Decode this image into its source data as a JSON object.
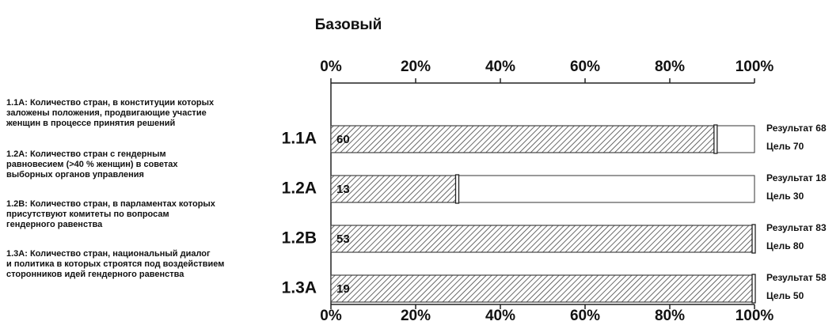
{
  "chart_data": {
    "type": "bar",
    "title": "Базовый",
    "categories": [
      "1.1A",
      "1.2A",
      "1.2B",
      "1.3A"
    ],
    "descriptions": [
      [
        "1.1A: Количество стран, в конституции которых",
        "заложены положения, продвигающие участие",
        "женщин в процессе принятия решений"
      ],
      [
        "1.2A: Количество стран с гендерным",
        "равновесием (>40 % женщин) в советах",
        "выборных органов управления"
      ],
      [
        "1.2B: Количество стран, в парламентах которых",
        "присутствуют комитеты по вопросам",
        "гендерного равенства"
      ],
      [
        "1.3A: Количество стран, национальный диалог",
        "и политика в которых строятся под воздействием",
        "сторонников идей гендерного равенства"
      ]
    ],
    "values": [
      91,
      30,
      100,
      100
    ],
    "baseline": [
      60,
      13,
      53,
      19
    ],
    "results": [
      "Результат 68",
      "Результат 18",
      "Результат 83",
      "Результат 58"
    ],
    "targets": [
      "Цель 70",
      "Цель 30",
      "Цель 80",
      "Цель 50"
    ],
    "xlim": [
      0,
      100
    ],
    "xticks": [
      {
        "value": 0,
        "label": "0%"
      },
      {
        "value": 20,
        "label": "20%"
      },
      {
        "value": 40,
        "label": "40%"
      },
      {
        "value": 60,
        "label": "60%"
      },
      {
        "value": 80,
        "label": "80%"
      },
      {
        "value": 100,
        "label": "100%"
      }
    ],
    "color": "#444444"
  }
}
